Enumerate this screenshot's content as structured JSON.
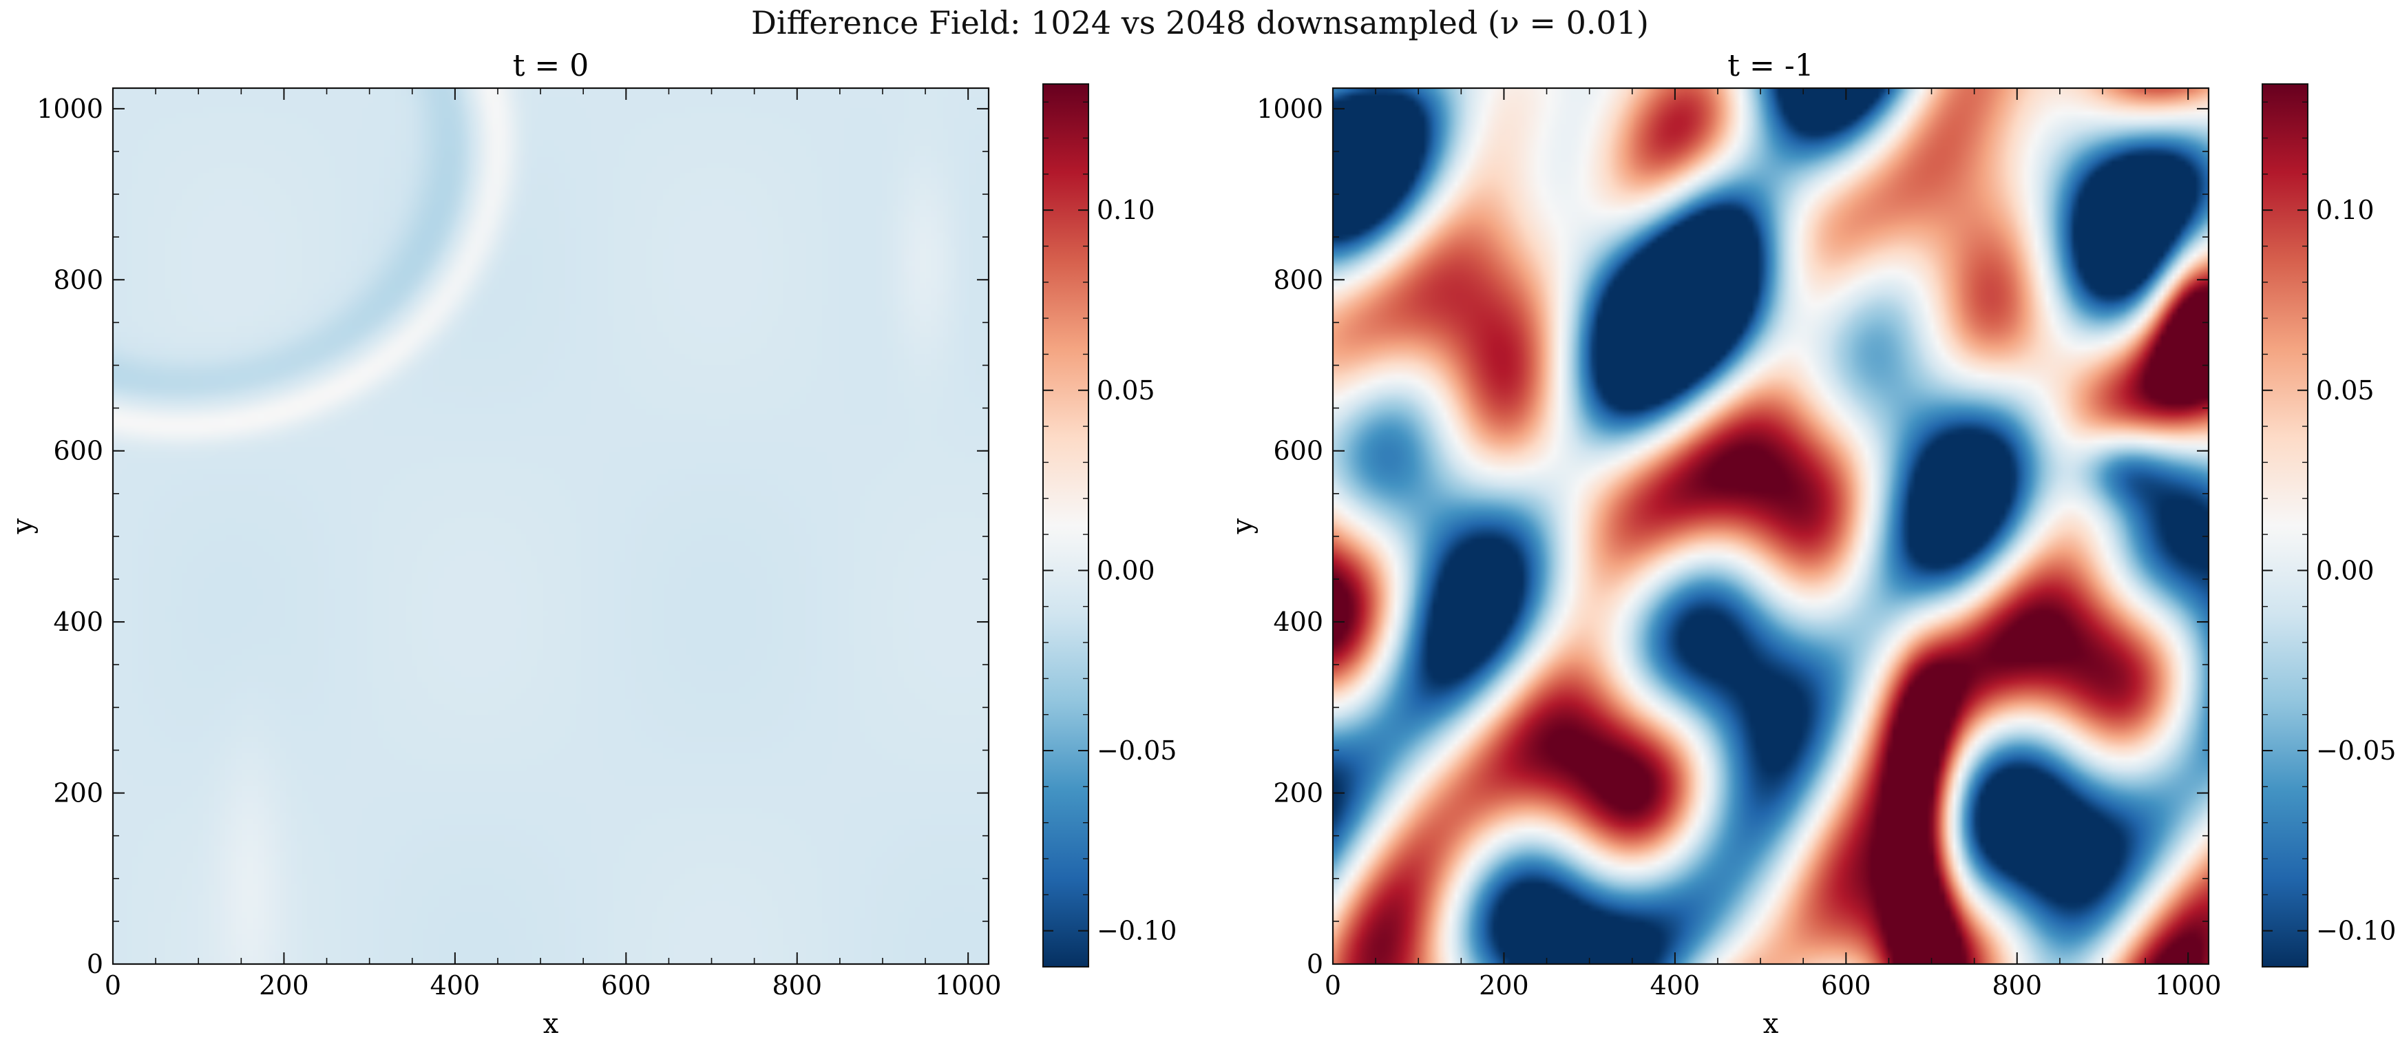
{
  "figure": {
    "suptitle": "Difference Field: 1024 vs 2048 downsampled (ν = 0.01)"
  },
  "colors": {
    "colormap": "RdBu_r",
    "stops": [
      "#053061",
      "#2166ac",
      "#4393c3",
      "#92c5de",
      "#d1e5f0",
      "#f7f7f7",
      "#fddbc7",
      "#f4a582",
      "#d6604d",
      "#b2182b",
      "#67001f"
    ]
  },
  "chart_data": [
    {
      "type": "heatmap",
      "title": "t = 0",
      "xlabel": "x",
      "ylabel": "y",
      "xlim": [
        0,
        1024
      ],
      "ylim": [
        0,
        1024
      ],
      "xticks": [
        "0",
        "200",
        "400",
        "600",
        "800",
        "1000"
      ],
      "yticks": [
        "0",
        "200",
        "400",
        "600",
        "800",
        "1000"
      ],
      "colorbar": {
        "vmin": -0.11,
        "vmax": 0.135,
        "ticks": [
          "−0.10",
          "−0.05",
          "0.00",
          "0.05",
          "0.10"
        ]
      },
      "field_summary": "near-zero, mostly faint blue (≈ -0.01) with faint red band near top-left",
      "grid": false
    },
    {
      "type": "heatmap",
      "title": "t = -1",
      "xlabel": "x",
      "ylabel": "y",
      "xlim": [
        0,
        1024
      ],
      "ylim": [
        0,
        1024
      ],
      "xticks": [
        "0",
        "200",
        "400",
        "600",
        "800",
        "1000"
      ],
      "yticks": [
        "0",
        "200",
        "400",
        "600",
        "800",
        "1000"
      ],
      "colorbar": {
        "vmin": -0.11,
        "vmax": 0.135,
        "ticks": [
          "−0.10",
          "−0.05",
          "0.00",
          "0.05",
          "0.10"
        ]
      },
      "field_summary": "strong turbulent difference field with saturated red and blue filaments",
      "grid": false
    }
  ]
}
